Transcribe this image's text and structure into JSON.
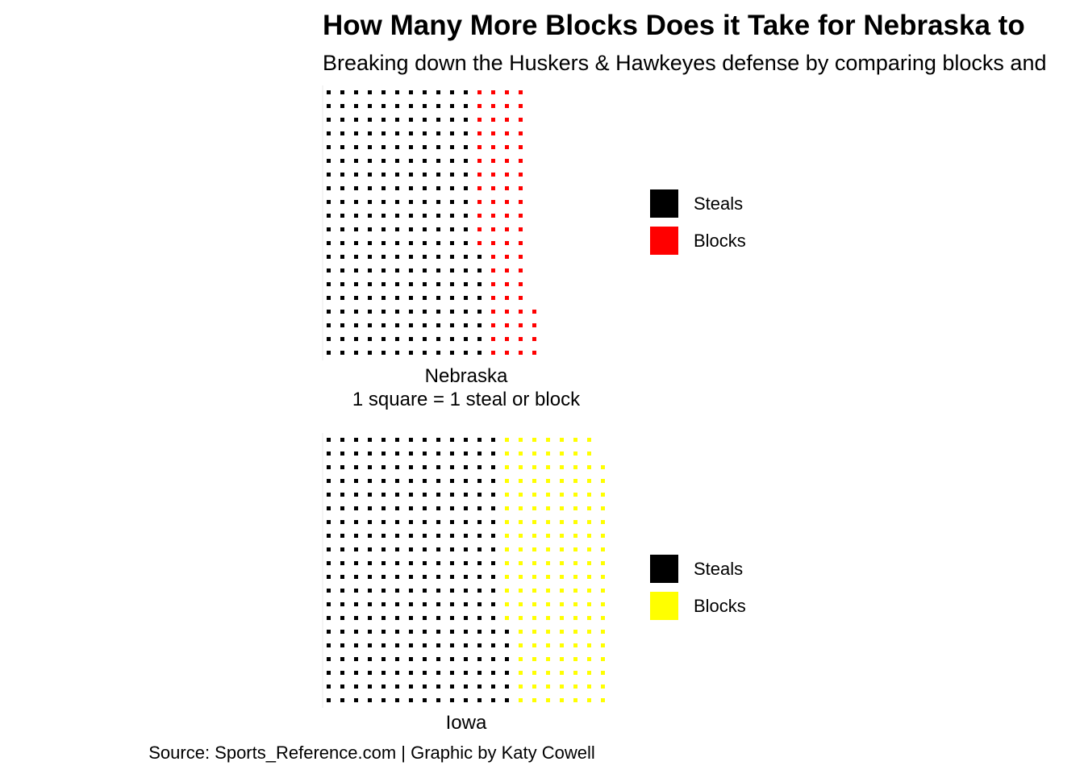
{
  "chart_data": [
    {
      "type": "waffle",
      "title": "How Many More Blocks Does it Take for Nebraska to",
      "subtitle": "Breaking down the Huskers & Hawkeyes defense by comparing blocks and",
      "xlabel": "Nebraska\n1 square = 1 steal or block",
      "rows": 20,
      "categories": [
        "Steals",
        "Blocks"
      ],
      "values": [
        228,
        76
      ],
      "colors": [
        "#000000",
        "#ff0000"
      ],
      "legend_position": "right"
    },
    {
      "type": "waffle",
      "xlabel": "Iowa",
      "rows": 20,
      "categories": [
        "Steals",
        "Blocks"
      ],
      "values": [
        266,
        152
      ],
      "colors": [
        "#000000",
        "#ffff00"
      ],
      "legend_position": "right"
    }
  ],
  "caption": "Source: Sports_Reference.com | Graphic by Katy Cowell"
}
